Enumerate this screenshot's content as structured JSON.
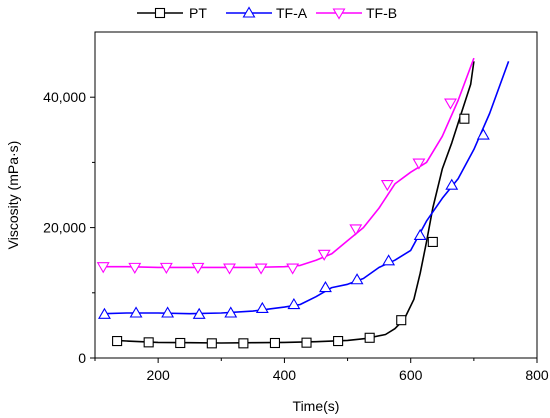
{
  "chart_data": {
    "type": "line",
    "xlabel": "Time(s)",
    "ylabel": "Viscosity (mPa·s)",
    "xlim": [
      100,
      800
    ],
    "ylim": [
      0,
      50000
    ],
    "xticks": [
      200,
      400,
      600,
      800
    ],
    "yticks": [
      0,
      20000,
      40000
    ],
    "xtick_labels": [
      "200",
      "400",
      "600",
      "800"
    ],
    "ytick_labels": [
      "0",
      "20,000",
      "40,000"
    ],
    "legend_position": "top",
    "grid": false,
    "series": [
      {
        "name": "PT",
        "color": "#000000",
        "marker": "square",
        "x": [
          133,
          150,
          200,
          250,
          300,
          350,
          400,
          450,
          500,
          530,
          560,
          575,
          590,
          605,
          615,
          625,
          635,
          650,
          665,
          680,
          695,
          700
        ],
        "y": [
          2700,
          2600,
          2400,
          2350,
          2300,
          2350,
          2400,
          2500,
          2700,
          3000,
          3600,
          4500,
          6000,
          9000,
          13000,
          17800,
          23000,
          29000,
          33000,
          37500,
          42000,
          45500
        ],
        "marker_x": [
          135,
          185,
          235,
          285,
          335,
          385,
          435,
          485,
          535,
          585,
          635,
          685
        ],
        "marker_y": [
          2600,
          2400,
          2300,
          2250,
          2250,
          2300,
          2350,
          2600,
          3100,
          5800,
          17800,
          36700
        ]
      },
      {
        "name": "TF-A",
        "color": "#0000ff",
        "marker": "triangle-up",
        "x": [
          113,
          150,
          200,
          250,
          300,
          350,
          400,
          425,
          450,
          475,
          500,
          525,
          550,
          575,
          600,
          625,
          650,
          675,
          700,
          725,
          755
        ],
        "y": [
          6800,
          6900,
          6900,
          6800,
          6900,
          7200,
          7800,
          8200,
          9400,
          10800,
          11300,
          12200,
          13900,
          15000,
          16500,
          21000,
          24500,
          27500,
          32000,
          37500,
          45500
        ],
        "marker_x": [
          115,
          165,
          215,
          265,
          315,
          365,
          415,
          465,
          515,
          565,
          615,
          665,
          715
        ],
        "marker_y": [
          6700,
          6900,
          6900,
          6700,
          6900,
          7600,
          8200,
          10800,
          12000,
          14900,
          18800,
          26500,
          34200
        ]
      },
      {
        "name": "TF-B",
        "color": "#ff00ff",
        "marker": "triangle-down",
        "x": [
          113,
          150,
          200,
          250,
          300,
          350,
          400,
          425,
          450,
          475,
          500,
          525,
          550,
          575,
          600,
          625,
          650,
          675,
          700
        ],
        "y": [
          14000,
          14000,
          13900,
          13900,
          13900,
          13900,
          14000,
          14200,
          15000,
          16000,
          18000,
          20000,
          23000,
          26700,
          28500,
          30000,
          34000,
          39500,
          46000
        ],
        "marker_x": [
          113,
          163,
          213,
          263,
          313,
          363,
          413,
          463,
          513,
          563,
          613,
          663
        ],
        "marker_y": [
          14000,
          13900,
          13900,
          13900,
          13800,
          13800,
          13800,
          15900,
          19800,
          26600,
          29900,
          39100
        ]
      }
    ]
  }
}
